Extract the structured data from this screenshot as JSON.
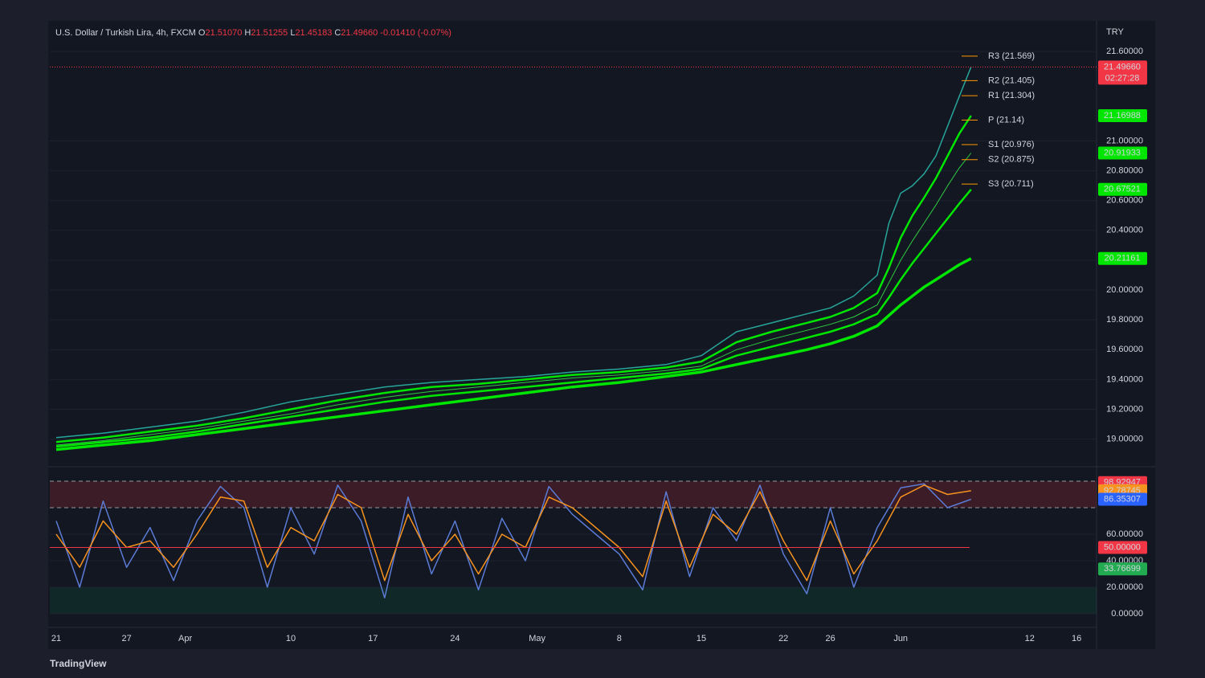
{
  "header": {
    "symbol": "U.S. Dollar / Turkish Lira, 4h, FXCM",
    "ohlc": [
      {
        "key": "O",
        "value": "21.51070"
      },
      {
        "key": "H",
        "value": "21.51255"
      },
      {
        "key": "L",
        "value": "21.45183"
      },
      {
        "key": "C",
        "value": "21.49660"
      }
    ],
    "change": "-0.01410 (-0.07%)",
    "currency": "TRY"
  },
  "footer": {
    "brand": "TradingView"
  },
  "chart_data": [
    {
      "type": "line",
      "x": [
        0,
        4,
        8,
        12,
        16,
        20,
        24,
        28,
        32,
        36,
        40,
        44,
        48,
        52,
        55,
        58,
        61,
        64,
        66,
        68,
        70,
        71,
        72,
        73,
        74,
        75,
        76,
        77,
        78
      ],
      "xlim": [
        -0.55,
        88.7
      ],
      "ylim": [
        18.82,
        21.795
      ],
      "yticks": [
        {
          "value": 19,
          "label": "19.00000"
        },
        {
          "value": 19.2,
          "label": "19.20000"
        },
        {
          "value": 19.4,
          "label": "19.40000"
        },
        {
          "value": 19.6,
          "label": "19.60000"
        },
        {
          "value": 19.8,
          "label": "19.80000"
        },
        {
          "value": 20,
          "label": "20.00000"
        },
        {
          "value": 20.2,
          "label": "20.20000"
        },
        {
          "value": 20.4,
          "label": "20.40000"
        },
        {
          "value": 20.6,
          "label": "20.60000"
        },
        {
          "value": 20.8,
          "label": "20.80000"
        },
        {
          "value": 21,
          "label": "21.00000"
        },
        {
          "value": 21.6,
          "label": "21.60000"
        }
      ],
      "series": [
        {
          "color": "#26a69a",
          "width": 1.5,
          "values": [
            19.01,
            19.04,
            19.08,
            19.12,
            19.18,
            19.25,
            19.3,
            19.35,
            19.38,
            19.4,
            19.42,
            19.45,
            19.47,
            19.5,
            19.56,
            19.72,
            19.78,
            19.84,
            19.88,
            19.96,
            20.1,
            20.45,
            20.65,
            20.7,
            20.78,
            20.9,
            21.1,
            21.3,
            21.4966
          ]
        },
        {
          "color": "#00e600",
          "width": 2.5,
          "values": [
            18.98,
            19.01,
            19.05,
            19.09,
            19.14,
            19.2,
            19.26,
            19.31,
            19.35,
            19.37,
            19.4,
            19.43,
            19.45,
            19.48,
            19.52,
            19.65,
            19.72,
            19.78,
            19.82,
            19.88,
            19.98,
            20.15,
            20.35,
            20.5,
            20.62,
            20.75,
            20.9,
            21.05,
            21.16988
          ]
        },
        {
          "color": "#2ecc40",
          "width": 1,
          "values": [
            18.96,
            18.99,
            19.03,
            19.07,
            19.12,
            19.17,
            19.23,
            19.28,
            19.32,
            19.35,
            19.38,
            19.41,
            19.43,
            19.46,
            19.49,
            19.6,
            19.67,
            19.73,
            19.77,
            19.82,
            19.9,
            20.05,
            20.2,
            20.33,
            20.45,
            20.57,
            20.7,
            20.82,
            20.91933
          ]
        },
        {
          "color": "#00e600",
          "width": 2.5,
          "values": [
            18.95,
            18.98,
            19.01,
            19.05,
            19.1,
            19.15,
            19.2,
            19.25,
            19.29,
            19.32,
            19.35,
            19.38,
            19.41,
            19.44,
            19.47,
            19.56,
            19.62,
            19.68,
            19.72,
            19.77,
            19.84,
            19.95,
            20.07,
            20.18,
            20.28,
            20.38,
            20.48,
            20.58,
            20.67521
          ]
        },
        {
          "color": "#00e600",
          "width": 3.5,
          "values": [
            18.93,
            18.96,
            18.99,
            19.03,
            19.07,
            19.11,
            19.15,
            19.19,
            19.23,
            19.27,
            19.31,
            19.35,
            19.38,
            19.42,
            19.45,
            19.5,
            19.55,
            19.6,
            19.64,
            19.69,
            19.76,
            19.83,
            19.9,
            19.96,
            20.02,
            20.07,
            20.12,
            20.17,
            20.21161
          ]
        }
      ],
      "pivots": [
        {
          "label": "R3 (21.569)",
          "value": 21.569
        },
        {
          "label": "R2 (21.405)",
          "value": 21.405
        },
        {
          "label": "R1 (21.304)",
          "value": 21.304
        },
        {
          "label": "P (21.14)",
          "value": 21.14
        },
        {
          "label": "S1 (20.976)",
          "value": 20.976
        },
        {
          "label": "S2 (20.875)",
          "value": 20.875
        },
        {
          "label": "S3 (20.711)",
          "value": 20.711
        }
      ],
      "badges": [
        {
          "label": "21.49660",
          "value": 21.4966,
          "color": "#f23645",
          "sub": "02:27:28",
          "line": true
        },
        {
          "label": "21.16988",
          "value": 21.16988,
          "color": "#00e600"
        },
        {
          "label": "20.91933",
          "value": 20.91933,
          "color": "#00e600"
        },
        {
          "label": "20.67521",
          "value": 20.67521,
          "color": "#00e600"
        },
        {
          "label": "20.21161",
          "value": 20.21161,
          "color": "#00e600"
        }
      ]
    },
    {
      "type": "line",
      "x": [
        0,
        2,
        4,
        6,
        8,
        10,
        12,
        14,
        16,
        18,
        20,
        22,
        24,
        26,
        28,
        30,
        32,
        34,
        36,
        38,
        40,
        42,
        44,
        46,
        48,
        50,
        52,
        54,
        56,
        58,
        60,
        62,
        64,
        66,
        68,
        70,
        72,
        74,
        76,
        78
      ],
      "xlim": [
        -0.55,
        88.7
      ],
      "ylim": [
        -9.7,
        110.3
      ],
      "yticks": [
        {
          "value": 0,
          "label": "0.00000"
        },
        {
          "value": 20,
          "label": "20.00000"
        },
        {
          "value": 40,
          "label": "40.00000"
        },
        {
          "value": 60,
          "label": "60.00000"
        }
      ],
      "xticks": [
        {
          "value": 0,
          "label": "21"
        },
        {
          "value": 6,
          "label": "27"
        },
        {
          "value": 11,
          "label": "Apr"
        },
        {
          "value": 20,
          "label": "10"
        },
        {
          "value": 27,
          "label": "17"
        },
        {
          "value": 34,
          "label": "24"
        },
        {
          "value": 41,
          "label": "May"
        },
        {
          "value": 48,
          "label": "8"
        },
        {
          "value": 55,
          "label": "15"
        },
        {
          "value": 62,
          "label": "22"
        },
        {
          "value": 66,
          "label": "26"
        },
        {
          "value": 72,
          "label": "Jun"
        },
        {
          "value": 83,
          "label": "12"
        },
        {
          "value": 87,
          "label": "16"
        }
      ],
      "series": [
        {
          "color": "#5b7bd5",
          "width": 1.5,
          "values": [
            70,
            20,
            85,
            35,
            65,
            25,
            70,
            96,
            80,
            20,
            80,
            45,
            97,
            70,
            12,
            88,
            30,
            70,
            18,
            72,
            40,
            96,
            75,
            60,
            45,
            18,
            92,
            28,
            80,
            55,
            97,
            45,
            15,
            80,
            20,
            65,
            95,
            98,
            80,
            86.35307
          ]
        },
        {
          "color": "#f7931e",
          "width": 1.5,
          "values": [
            60,
            35,
            70,
            50,
            55,
            35,
            60,
            88,
            85,
            35,
            65,
            55,
            90,
            80,
            25,
            75,
            40,
            60,
            30,
            60,
            50,
            88,
            80,
            65,
            50,
            28,
            85,
            35,
            75,
            60,
            92,
            55,
            25,
            70,
            30,
            55,
            88,
            97,
            90,
            92.78745
          ]
        }
      ],
      "bands": [
        {
          "from": 80,
          "to": 100,
          "color": "rgba(242,54,69,0.18)"
        },
        {
          "from": 0,
          "to": 20,
          "color": "rgba(0,150,80,0.14)"
        }
      ],
      "hlines": [
        0,
        20,
        80,
        100
      ],
      "badges": [
        {
          "label": "98.92947",
          "value": 98.92947,
          "color": "#f23645"
        },
        {
          "label": "92.78745",
          "value": 92.78745,
          "color": "#f7931e"
        },
        {
          "label": "86.35307",
          "value": 86.35307,
          "color": "#2962ff"
        },
        {
          "label": "50.00000",
          "value": 50,
          "color": "#f23645",
          "line": true
        },
        {
          "label": "33.76699",
          "value": 33.76699,
          "color": "#22ab50"
        }
      ]
    }
  ]
}
